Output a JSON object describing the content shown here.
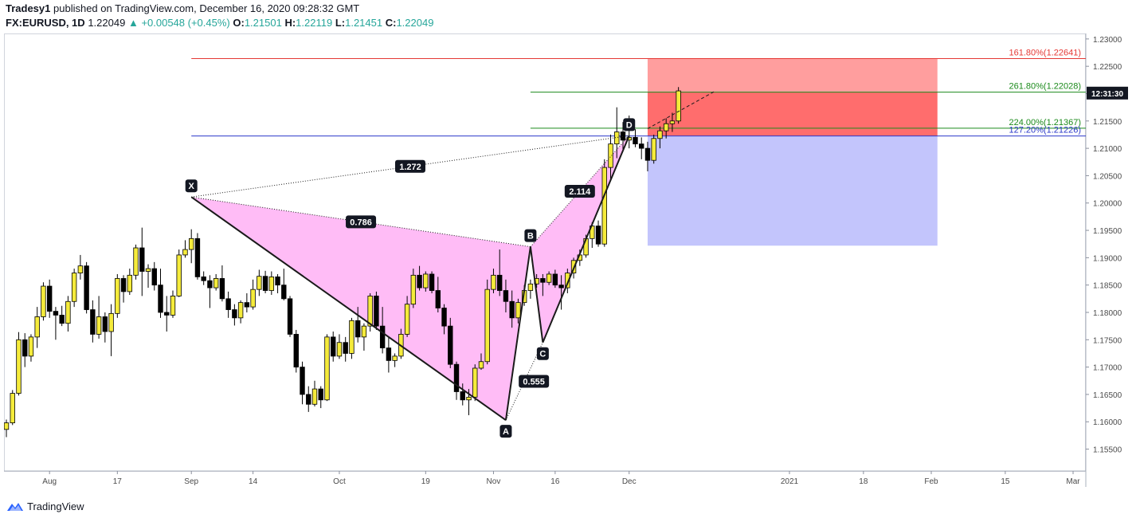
{
  "header": {
    "author": "Tradesy1",
    "published_text": "published on TradingView.com, December 16, 2020 09:28:32 GMT",
    "symbol": "FX:EURUSD, 1D",
    "last": "1.22049",
    "change": "+0.00548 (+0.45%)",
    "o_label": "O:",
    "o": "1.21501",
    "h_label": "H:",
    "h": "1.22119",
    "l_label": "L:",
    "l": "1.21451",
    "c_label": "C:",
    "c": "1.22049"
  },
  "footer": {
    "brand": "TradingView"
  },
  "colors": {
    "bull": "#f5eb3b",
    "bear": "#000000",
    "pattern_fill": "#ffb8f5",
    "stop_zone": "#ff6d6d",
    "target_zone": "#c3c5fc",
    "upper_zone": "#ff9e9e",
    "green_line": "#1b8a1b",
    "red_line": "#e53935",
    "blue_line": "#2b38c9"
  },
  "chart_data": {
    "type": "candlestick",
    "symbol": "FX:EURUSD",
    "interval": "1D",
    "ylim": [
      1.151,
      1.231
    ],
    "y_ticks": [
      "1.23000",
      "1.22500",
      "1.22000",
      "1.21500",
      "1.21000",
      "1.20500",
      "1.20000",
      "1.19500",
      "1.19000",
      "1.18500",
      "1.18000",
      "1.17500",
      "1.17000",
      "1.16500",
      "1.16000",
      "1.15500"
    ],
    "x_ticks": [
      "Aug",
      "17",
      "Sep",
      "14",
      "Oct",
      "19",
      "Nov",
      "16",
      "Dec",
      "2021",
      "18",
      "Feb",
      "15",
      "Mar"
    ],
    "price_label": "12:31:30",
    "price_label_value": 1.2201,
    "candles": [
      [
        1.1586,
        1.1604,
        1.1572,
        1.1598
      ],
      [
        1.1598,
        1.1658,
        1.1594,
        1.1652
      ],
      [
        1.1652,
        1.1764,
        1.1648,
        1.175
      ],
      [
        1.175,
        1.1762,
        1.17,
        1.172
      ],
      [
        1.172,
        1.176,
        1.171,
        1.1755
      ],
      [
        1.1755,
        1.181,
        1.1735,
        1.1792
      ],
      [
        1.1792,
        1.1855,
        1.1785,
        1.1848
      ],
      [
        1.1848,
        1.186,
        1.179,
        1.1802
      ],
      [
        1.1802,
        1.181,
        1.175,
        1.1795
      ],
      [
        1.1795,
        1.1812,
        1.1775,
        1.178
      ],
      [
        1.178,
        1.183,
        1.1765,
        1.182
      ],
      [
        1.182,
        1.188,
        1.181,
        1.1872
      ],
      [
        1.1872,
        1.1905,
        1.186,
        1.1885
      ],
      [
        1.1885,
        1.1892,
        1.1798,
        1.1805
      ],
      [
        1.1805,
        1.1822,
        1.1745,
        1.176
      ],
      [
        1.176,
        1.183,
        1.1752,
        1.1792
      ],
      [
        1.1792,
        1.18,
        1.1745,
        1.1765
      ],
      [
        1.1765,
        1.1815,
        1.172,
        1.1798
      ],
      [
        1.1798,
        1.187,
        1.179,
        1.1862
      ],
      [
        1.1862,
        1.1868,
        1.1818,
        1.1838
      ],
      [
        1.1838,
        1.188,
        1.1832,
        1.1868
      ],
      [
        1.1868,
        1.1924,
        1.186,
        1.1918
      ],
      [
        1.1918,
        1.1955,
        1.183,
        1.1875
      ],
      [
        1.1875,
        1.1888,
        1.1845,
        1.188
      ],
      [
        1.188,
        1.1892,
        1.184,
        1.185
      ],
      [
        1.185,
        1.188,
        1.179,
        1.18
      ],
      [
        1.18,
        1.183,
        1.1765,
        1.1795
      ],
      [
        1.1795,
        1.184,
        1.179,
        1.183
      ],
      [
        1.183,
        1.1915,
        1.1828,
        1.1905
      ],
      [
        1.1905,
        1.1932,
        1.19,
        1.1915
      ],
      [
        1.1915,
        1.1952,
        1.189,
        1.1935
      ],
      [
        1.1935,
        1.1945,
        1.186,
        1.1865
      ],
      [
        1.1865,
        1.1875,
        1.185,
        1.1858
      ],
      [
        1.1858,
        1.1868,
        1.1808,
        1.1845
      ],
      [
        1.1845,
        1.187,
        1.184,
        1.1862
      ],
      [
        1.1862,
        1.1886,
        1.182,
        1.1825
      ],
      [
        1.1825,
        1.1838,
        1.179,
        1.1805
      ],
      [
        1.1805,
        1.1815,
        1.1776,
        1.179
      ],
      [
        1.179,
        1.1822,
        1.178,
        1.1818
      ],
      [
        1.1818,
        1.1835,
        1.18,
        1.181
      ],
      [
        1.181,
        1.186,
        1.1805,
        1.1842
      ],
      [
        1.1842,
        1.1878,
        1.183,
        1.1866
      ],
      [
        1.1866,
        1.1876,
        1.1835,
        1.184
      ],
      [
        1.184,
        1.1875,
        1.1832,
        1.1865
      ],
      [
        1.1865,
        1.187,
        1.1835,
        1.185
      ],
      [
        1.185,
        1.188,
        1.1822,
        1.1825
      ],
      [
        1.1825,
        1.183,
        1.1755,
        1.176
      ],
      [
        1.176,
        1.1768,
        1.169,
        1.17
      ],
      [
        1.17,
        1.171,
        1.1632,
        1.165
      ],
      [
        1.165,
        1.1665,
        1.1618,
        1.1632
      ],
      [
        1.1632,
        1.1675,
        1.1628,
        1.166
      ],
      [
        1.166,
        1.1665,
        1.1625,
        1.164
      ],
      [
        1.164,
        1.176,
        1.1638,
        1.1755
      ],
      [
        1.1755,
        1.1765,
        1.171,
        1.172
      ],
      [
        1.172,
        1.176,
        1.1715,
        1.1745
      ],
      [
        1.1745,
        1.1755,
        1.171,
        1.1725
      ],
      [
        1.1725,
        1.179,
        1.1715,
        1.1785
      ],
      [
        1.1785,
        1.181,
        1.1745,
        1.1755
      ],
      [
        1.1755,
        1.178,
        1.173,
        1.1775
      ],
      [
        1.1775,
        1.1835,
        1.1765,
        1.183
      ],
      [
        1.183,
        1.1838,
        1.1768,
        1.1775
      ],
      [
        1.1775,
        1.181,
        1.1725,
        1.1735
      ],
      [
        1.1735,
        1.1755,
        1.169,
        1.1712
      ],
      [
        1.1712,
        1.1725,
        1.17,
        1.172
      ],
      [
        1.172,
        1.177,
        1.1715,
        1.176
      ],
      [
        1.176,
        1.183,
        1.1755,
        1.1815
      ],
      [
        1.1815,
        1.188,
        1.1808,
        1.1868
      ],
      [
        1.1868,
        1.1885,
        1.184,
        1.1845
      ],
      [
        1.1845,
        1.1875,
        1.1838,
        1.187
      ],
      [
        1.187,
        1.1875,
        1.1835,
        1.184
      ],
      [
        1.184,
        1.1865,
        1.18,
        1.1808
      ],
      [
        1.1808,
        1.1815,
        1.176,
        1.1775
      ],
      [
        1.1775,
        1.179,
        1.1698,
        1.1705
      ],
      [
        1.1705,
        1.171,
        1.164,
        1.1655
      ],
      [
        1.1655,
        1.167,
        1.163,
        1.164
      ],
      [
        1.164,
        1.166,
        1.1612,
        1.1645
      ],
      [
        1.1645,
        1.1705,
        1.1638,
        1.1698
      ],
      [
        1.1698,
        1.1725,
        1.1695,
        1.171
      ],
      [
        1.171,
        1.186,
        1.1705,
        1.1842
      ],
      [
        1.1842,
        1.188,
        1.1835,
        1.1868
      ],
      [
        1.1868,
        1.1915,
        1.183,
        1.184
      ],
      [
        1.184,
        1.186,
        1.18,
        1.182
      ],
      [
        1.182,
        1.184,
        1.1772,
        1.179
      ],
      [
        1.179,
        1.1825,
        1.178,
        1.1818
      ],
      [
        1.1818,
        1.185,
        1.1812,
        1.184
      ],
      [
        1.184,
        1.186,
        1.1825,
        1.1852
      ],
      [
        1.1852,
        1.187,
        1.1845,
        1.1862
      ],
      [
        1.1862,
        1.187,
        1.183,
        1.1855
      ],
      [
        1.1855,
        1.1875,
        1.185,
        1.187
      ],
      [
        1.187,
        1.1878,
        1.1845,
        1.185
      ],
      [
        1.185,
        1.1868,
        1.1805,
        1.1845
      ],
      [
        1.1845,
        1.188,
        1.1835,
        1.1872
      ],
      [
        1.1872,
        1.19,
        1.1862,
        1.1895
      ],
      [
        1.1895,
        1.1915,
        1.1885,
        1.1905
      ],
      [
        1.1905,
        1.1942,
        1.19,
        1.1935
      ],
      [
        1.1935,
        1.1965,
        1.1918,
        1.1958
      ],
      [
        1.1958,
        1.1968,
        1.192,
        1.1925
      ],
      [
        1.1925,
        1.208,
        1.192,
        1.2065
      ],
      [
        1.2065,
        1.2125,
        1.204,
        1.2108
      ],
      [
        1.2108,
        1.2175,
        1.2082,
        1.213
      ],
      [
        1.213,
        1.2148,
        1.2095,
        1.2115
      ],
      [
        1.2115,
        1.216,
        1.21,
        1.212
      ],
      [
        1.212,
        1.2135,
        1.2102,
        1.2108
      ],
      [
        1.2108,
        1.212,
        1.208,
        1.21
      ],
      [
        1.21,
        1.2112,
        1.2058,
        1.2078
      ],
      [
        1.2078,
        1.2125,
        1.2072,
        1.2118
      ],
      [
        1.2118,
        1.214,
        1.21,
        1.2132
      ],
      [
        1.2132,
        1.2155,
        1.2118,
        1.2145
      ],
      [
        1.2145,
        1.2165,
        1.213,
        1.215
      ],
      [
        1.215,
        1.2212,
        1.2145,
        1.2205
      ]
    ],
    "pattern_points": [
      {
        "label": "X",
        "x": "Sep 1",
        "price": 1.2011
      },
      {
        "label": "A",
        "x": "Nov 4",
        "price": 1.1603
      },
      {
        "label": "B",
        "x": "Nov 9",
        "price": 1.192
      },
      {
        "label": "C",
        "x": "Nov 11",
        "price": 1.1745
      },
      {
        "label": "D",
        "x": "Dec 1",
        "price": 1.2123
      }
    ],
    "ratio_labels": [
      "1.272",
      "0.786",
      "2.114",
      "0.555"
    ],
    "levels": [
      {
        "label": "161.80%(1.22641)",
        "price": 1.22641,
        "color": "#e53935"
      },
      {
        "label": "261.80%(1.22028)",
        "price": 1.22028,
        "color": "#1b8a1b"
      },
      {
        "label": "224.00%(1.21367)",
        "price": 1.21367,
        "color": "#1b8a1b"
      },
      {
        "label": "127.20%(1.21226)",
        "price": 1.21226,
        "color": "#2b38c9"
      }
    ],
    "position_tool": {
      "entry": 1.21226,
      "stop": 1.22641,
      "target": 1.1922
    }
  }
}
